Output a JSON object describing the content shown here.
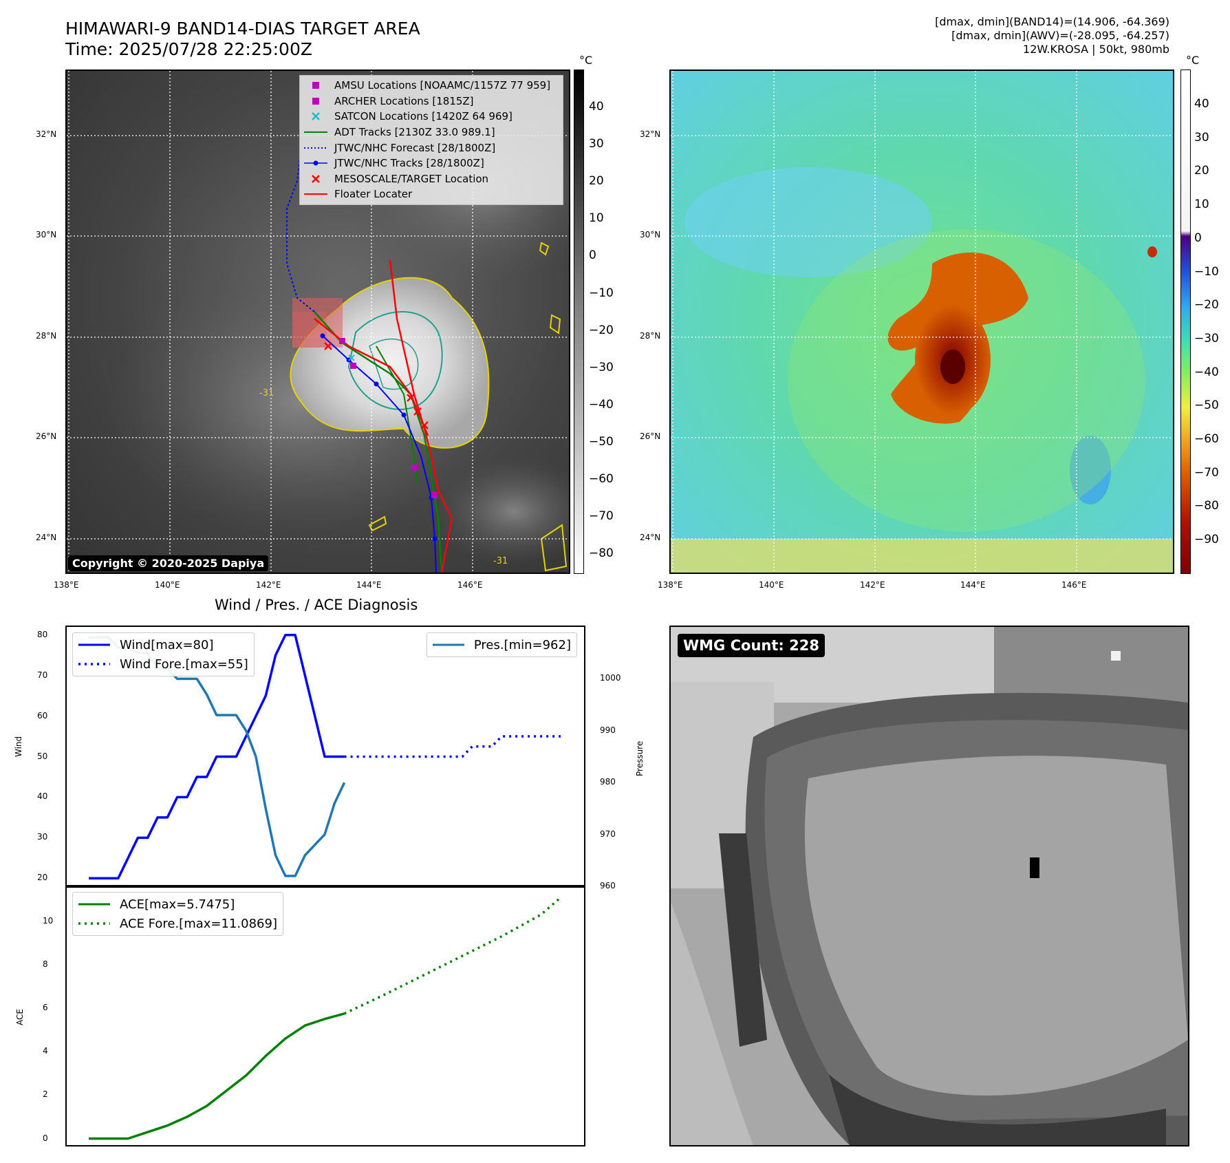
{
  "header": {
    "title_line1": "HIMAWARI-9 BAND14-DIAS TARGET AREA",
    "title_line2": "Time: 2025/07/28 22:25:00Z",
    "info_line1": "[dmax, dmin](BAND14)=(14.906, -64.369)",
    "info_line2": "[dmax, dmin](AWV)=(-28.095, -64.257)",
    "info_line3": "12W.KROSA | 50kt, 980mb"
  },
  "maps": {
    "lon_labels": [
      "138°E",
      "140°E",
      "142°E",
      "144°E",
      "146°E"
    ],
    "lat_labels": [
      "32°N",
      "30°N",
      "28°N",
      "26°N",
      "24°N"
    ],
    "copyright": "Copyright © 2020-2025 Dapiya",
    "contour_label": "-31"
  },
  "ir_colorbar": {
    "unit": "°C",
    "ticks": [
      "40",
      "30",
      "20",
      "10",
      "0",
      "−10",
      "−20",
      "−30",
      "−40",
      "−50",
      "−60",
      "−70",
      "−80"
    ]
  },
  "awv_colorbar": {
    "unit": "°C",
    "ticks": [
      "40",
      "30",
      "20",
      "10",
      "0",
      "−10",
      "−20",
      "−30",
      "−40",
      "−50",
      "−60",
      "−70",
      "−80",
      "−90"
    ]
  },
  "legend": {
    "items": [
      {
        "label": "AMSU Locations [NOAAMC/1157Z 77 959]",
        "symbol": "square",
        "color": "#c000c0"
      },
      {
        "label": "ARCHER Locations [1815Z]",
        "symbol": "square",
        "color": "#c000c0"
      },
      {
        "label": "SATCON Locations [1420Z 64 969]",
        "symbol": "x",
        "color": "#17becf"
      },
      {
        "label": "ADT Tracks [2130Z 33.0 989.1]",
        "symbol": "line",
        "color": "#008000"
      },
      {
        "label": "JTWC/NHC Forecast [28/1800Z]",
        "symbol": "dotted",
        "color": "#0000ff"
      },
      {
        "label": "JTWC/NHC Tracks [28/1800Z]",
        "symbol": "line-dot",
        "color": "#0000ff"
      },
      {
        "label": "MESOSCALE/TARGET Location",
        "symbol": "x",
        "color": "#ff0000"
      },
      {
        "label": "Floater Locater",
        "symbol": "line",
        "color": "#ff0000"
      }
    ]
  },
  "diagnosis": {
    "title": "Wind / Pres. / ACE Diagnosis",
    "wind_axis_label": "Wind",
    "pres_axis_label": "Pressure",
    "ace_axis_label": "ACE",
    "wind_legend": "Wind[max=80]",
    "wind_fore_legend": "Wind Fore.[max=55]",
    "pres_legend": "Pres.[min=962]",
    "ace_legend": "ACE[max=5.7475]",
    "ace_fore_legend": "ACE Fore.[max=11.0869]"
  },
  "wmg": {
    "count_label": "WMG Count: 228"
  },
  "chart_data": [
    {
      "type": "line",
      "name": "wind_pressure",
      "x": [
        0,
        1,
        2,
        3,
        4,
        5,
        6,
        7,
        8,
        9,
        10,
        11,
        12,
        13,
        14,
        15,
        16,
        17,
        18,
        19,
        20,
        21,
        22,
        23,
        24,
        25,
        26,
        27,
        28,
        29,
        30,
        31,
        32,
        33,
        34,
        35,
        36,
        37,
        38,
        39,
        40,
        41,
        42,
        43,
        44,
        45,
        46,
        47,
        48
      ],
      "series": [
        {
          "name": "Wind[max=80]",
          "axis": "left",
          "color": "#0000ff",
          "style": "solid",
          "x": [
            0,
            1,
            2,
            3,
            4,
            5,
            6,
            7,
            8,
            9,
            10,
            11,
            12,
            13,
            14,
            15,
            16,
            17,
            18,
            19,
            20,
            21,
            22,
            23,
            24,
            25,
            26
          ],
          "values": [
            20,
            20,
            20,
            20,
            25,
            30,
            30,
            35,
            35,
            40,
            40,
            45,
            45,
            50,
            50,
            50,
            55,
            60,
            65,
            75,
            80,
            80,
            70,
            60,
            50,
            50,
            50
          ]
        },
        {
          "name": "Wind Fore.[max=55]",
          "axis": "left",
          "color": "#0000ff",
          "style": "dotted",
          "x": [
            26,
            27,
            28,
            29,
            30,
            31,
            32,
            33,
            34,
            35,
            36,
            37,
            38,
            39,
            40,
            41,
            42,
            43,
            44,
            45,
            46,
            47,
            48
          ],
          "values": [
            50,
            50,
            50,
            50,
            50,
            50,
            50,
            50,
            50,
            50,
            50,
            50,
            50,
            52.5,
            52.5,
            52.5,
            55,
            55,
            55,
            55,
            55,
            55,
            55
          ]
        },
        {
          "name": "Pres.[min=962]",
          "axis": "right",
          "color": "#1f77b4",
          "style": "solid",
          "x": [
            0,
            1,
            2,
            3,
            4,
            5,
            6,
            7,
            8,
            9,
            10,
            11,
            12,
            13,
            14,
            15,
            16,
            17,
            18,
            19,
            20,
            21,
            22,
            23,
            24,
            25,
            26
          ],
          "values": [
            1008,
            1008,
            1008,
            1006,
            1006,
            1005,
            1005,
            1002,
            1002,
            1000,
            1000,
            1000,
            997,
            993,
            993,
            993,
            990,
            985,
            975,
            966,
            962,
            962,
            966,
            968,
            970,
            976,
            980
          ]
        }
      ],
      "ylim_left": [
        18,
        82
      ],
      "ylim_right": [
        960,
        1010
      ],
      "yticks_left": [
        20,
        30,
        40,
        50,
        60,
        70,
        80
      ],
      "yticks_right": [
        960,
        970,
        980,
        990,
        1000
      ],
      "ylabel": "Wind",
      "ylabel_right": "Pressure"
    },
    {
      "type": "line",
      "name": "ace",
      "series": [
        {
          "name": "ACE[max=5.7475]",
          "color": "#008000",
          "style": "solid",
          "x": [
            0,
            2,
            4,
            6,
            8,
            10,
            12,
            14,
            16,
            18,
            20,
            22,
            24,
            26
          ],
          "values": [
            0,
            0,
            0,
            0.3,
            0.6,
            1.0,
            1.5,
            2.2,
            2.9,
            3.8,
            4.6,
            5.2,
            5.5,
            5.7475
          ]
        },
        {
          "name": "ACE Fore.[max=11.0869]",
          "color": "#008000",
          "style": "dotted",
          "x": [
            26,
            30,
            34,
            38,
            42,
            46,
            48
          ],
          "values": [
            5.7475,
            6.6,
            7.5,
            8.4,
            9.3,
            10.3,
            11.0869
          ]
        }
      ],
      "ylim": [
        -0.3,
        11.6
      ],
      "yticks": [
        0,
        2,
        4,
        6,
        8,
        10
      ],
      "ylabel": "ACE"
    }
  ]
}
